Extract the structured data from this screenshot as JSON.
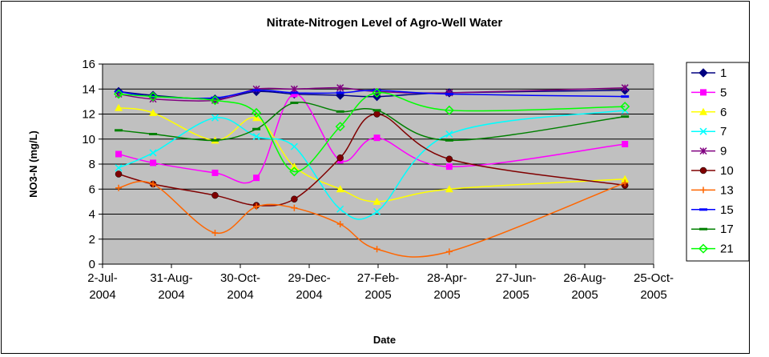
{
  "chart_data": {
    "type": "line",
    "title": "Nitrate-Nitrogen Level of Agro-Well Water",
    "x_label": "Date",
    "y_label": "NO3-N (mg/L)",
    "x": [
      "2004-07-16",
      "2004-08-15",
      "2004-10-08",
      "2004-11-13",
      "2004-12-16",
      "2005-01-25",
      "2005-02-26",
      "2005-04-30",
      "2005-09-30"
    ],
    "xlim": [
      "2004-07-02",
      "2005-10-25"
    ],
    "xticks": [
      {
        "value": "2004-07-02",
        "label": "2-Jul-2004"
      },
      {
        "value": "2004-08-31",
        "label": "31-Aug-2004"
      },
      {
        "value": "2004-10-30",
        "label": "30-Oct-2004"
      },
      {
        "value": "2004-12-29",
        "label": "29-Dec-2004"
      },
      {
        "value": "2005-02-27",
        "label": "27-Feb-2005"
      },
      {
        "value": "2005-04-28",
        "label": "28-Apr-2005"
      },
      {
        "value": "2005-06-27",
        "label": "27-Jun-2005"
      },
      {
        "value": "2005-08-26",
        "label": "26-Aug-2005"
      },
      {
        "value": "2005-10-25",
        "label": "25-Oct-2005"
      }
    ],
    "ylim": [
      0,
      16
    ],
    "yticks": [
      0,
      2,
      4,
      6,
      8,
      10,
      12,
      14,
      16
    ],
    "grid": true,
    "smooth": true,
    "legend": "right",
    "series": [
      {
        "name": "1",
        "color": "#000080",
        "marker": "diamond",
        "values": [
          13.8,
          13.5,
          13.2,
          13.8,
          13.6,
          13.5,
          13.4,
          13.7,
          13.9
        ]
      },
      {
        "name": "5",
        "color": "#ff00ff",
        "marker": "square",
        "values": [
          8.8,
          8.1,
          7.3,
          6.9,
          13.6,
          8.3,
          10.1,
          7.8,
          9.6
        ]
      },
      {
        "name": "6",
        "color": "#ffff00",
        "marker": "triangle",
        "values": [
          12.5,
          12.1,
          9.9,
          11.7,
          7.8,
          6.0,
          5.0,
          6.0,
          6.8
        ]
      },
      {
        "name": "7",
        "color": "#00ffff",
        "marker": "x",
        "values": [
          7.7,
          8.9,
          11.7,
          10.2,
          9.4,
          4.4,
          4.2,
          10.4,
          12.3
        ]
      },
      {
        "name": "9",
        "color": "#800080",
        "marker": "star",
        "values": [
          13.6,
          13.2,
          13.1,
          14.0,
          14.0,
          14.1,
          13.8,
          13.7,
          14.1
        ]
      },
      {
        "name": "10",
        "color": "#800000",
        "marker": "circle",
        "values": [
          7.2,
          6.4,
          5.5,
          4.7,
          5.2,
          8.5,
          12.0,
          8.4,
          6.3
        ]
      },
      {
        "name": "13",
        "color": "#ff6600",
        "marker": "plus",
        "values": [
          6.1,
          6.4,
          2.5,
          4.6,
          4.5,
          3.2,
          1.2,
          1.0,
          6.5
        ]
      },
      {
        "name": "15",
        "color": "#0000ff",
        "marker": "dash",
        "values": [
          13.8,
          13.4,
          13.3,
          13.9,
          13.7,
          13.7,
          13.9,
          13.6,
          13.4
        ]
      },
      {
        "name": "17",
        "color": "#008000",
        "marker": "dash",
        "values": [
          10.7,
          10.4,
          9.9,
          10.8,
          12.9,
          12.2,
          12.3,
          9.9,
          11.8
        ]
      },
      {
        "name": "21",
        "color": "#00ff00",
        "marker": "open-diamond",
        "values": [
          13.6,
          13.4,
          13.1,
          12.1,
          7.4,
          11.0,
          13.7,
          12.3,
          12.6
        ]
      }
    ]
  }
}
